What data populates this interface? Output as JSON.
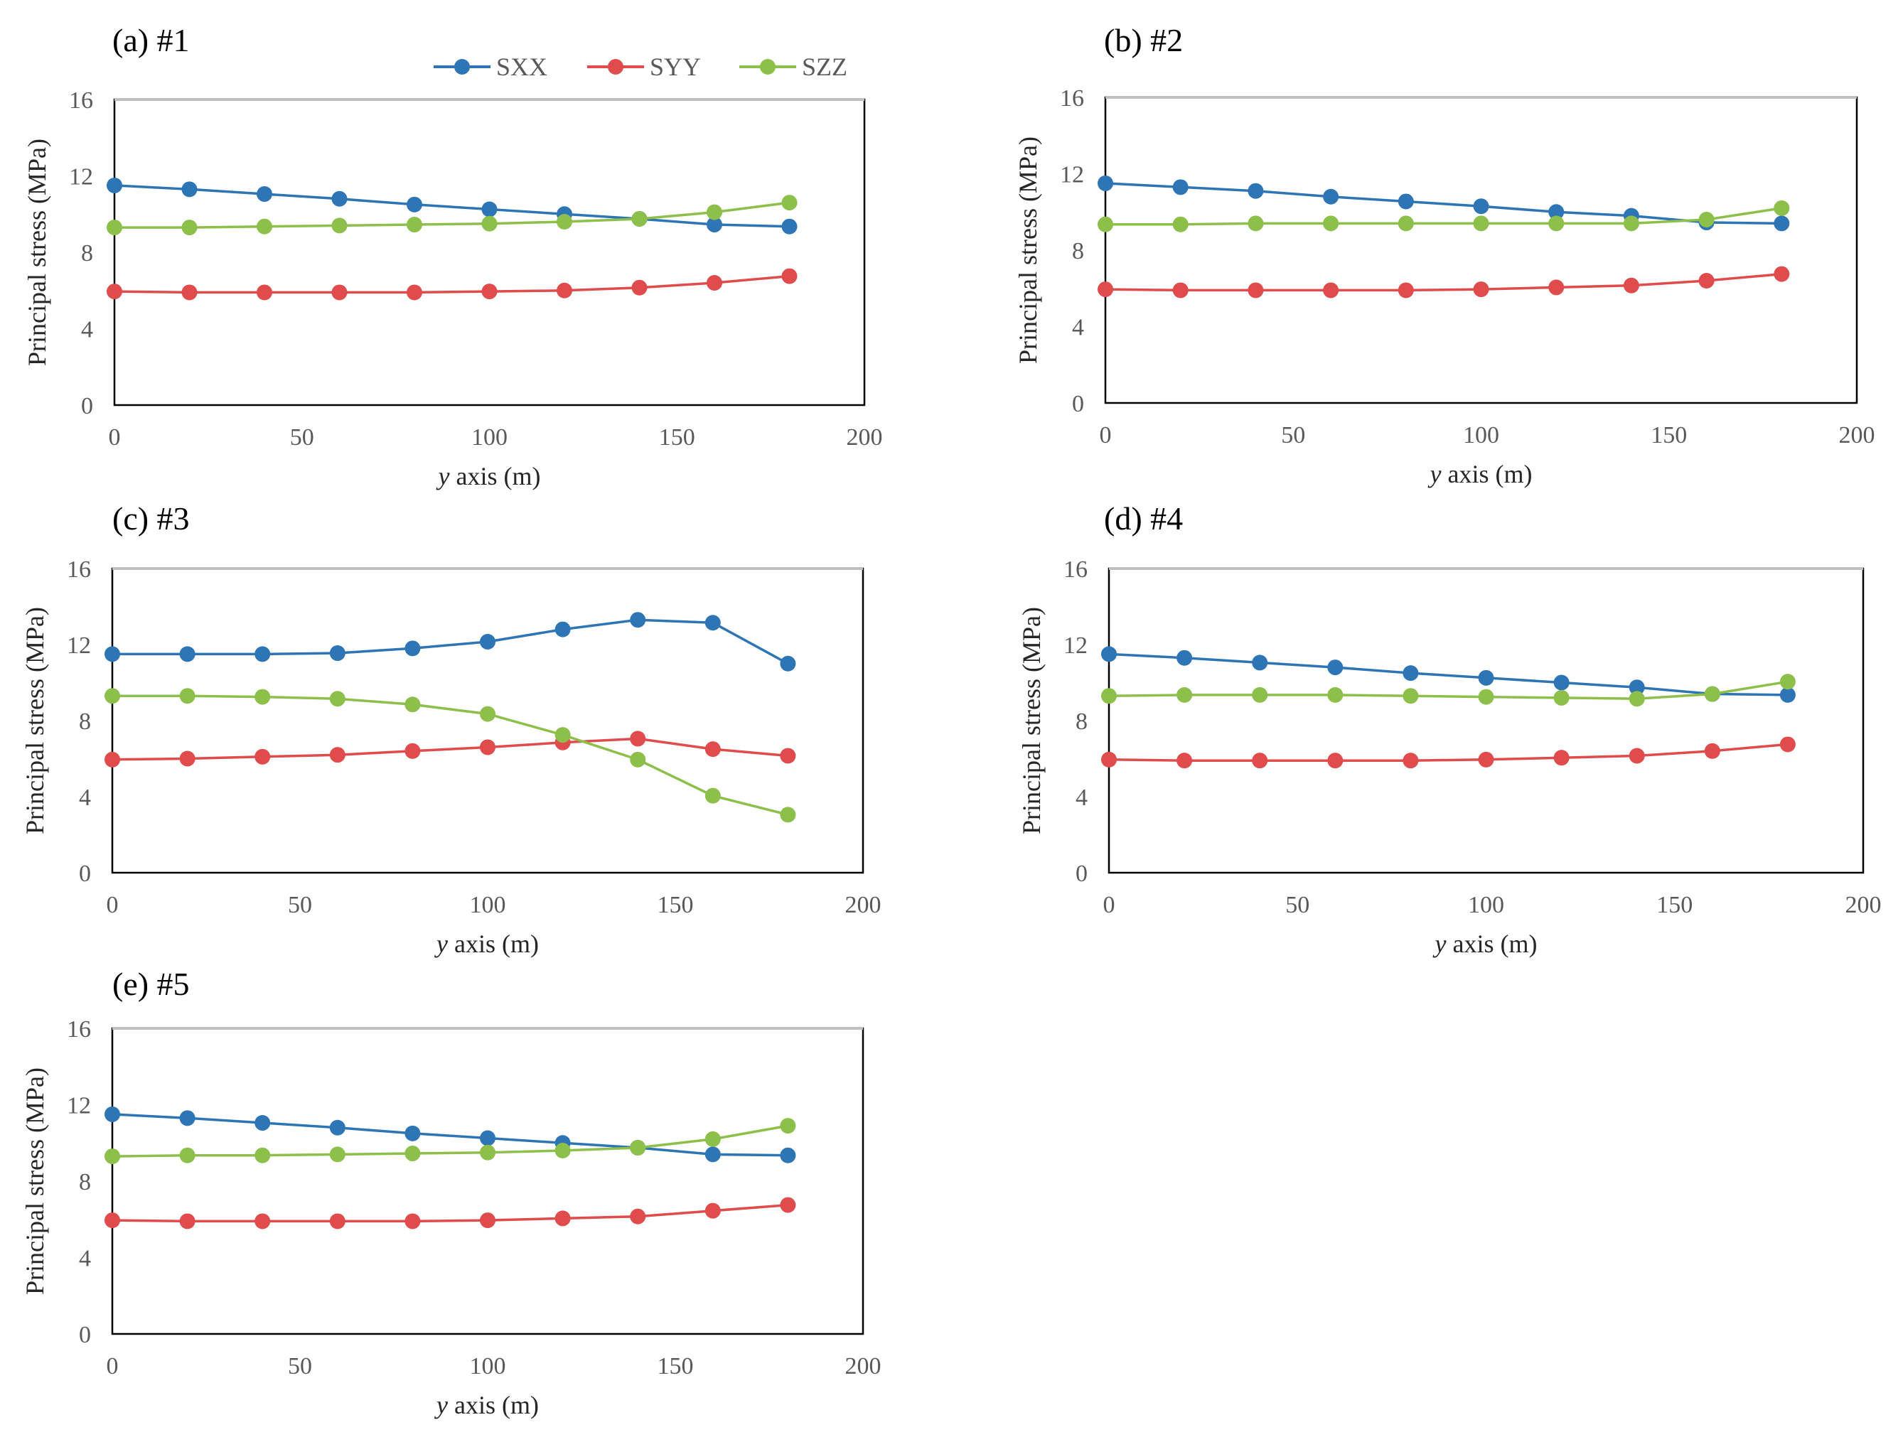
{
  "legend": [
    {
      "name": "SXX",
      "color": "#2e75b6"
    },
    {
      "name": "SYY",
      "color": "#e04b4b"
    },
    {
      "name": "SZZ",
      "color": "#8dbf4b"
    }
  ],
  "chart_data": [
    {
      "type": "line",
      "title": "(a) #1",
      "xlabel_italic": "y",
      "xlabel": " axis (m)",
      "ylabel": "Principal stress (MPa)",
      "xlim": [
        0,
        200
      ],
      "ylim": [
        0,
        16
      ],
      "xticks": [
        0,
        50,
        100,
        150,
        200
      ],
      "yticks": [
        0,
        4,
        8,
        12,
        16
      ],
      "x": [
        0,
        20,
        40,
        60,
        80,
        100,
        120,
        140,
        160,
        180
      ],
      "series": [
        {
          "name": "SXX",
          "values": [
            11.5,
            11.3,
            11.05,
            10.8,
            10.5,
            10.25,
            10.0,
            9.75,
            9.45,
            9.35
          ]
        },
        {
          "name": "SYY",
          "values": [
            5.95,
            5.9,
            5.9,
            5.9,
            5.9,
            5.95,
            6.0,
            6.15,
            6.4,
            6.75
          ]
        },
        {
          "name": "SZZ",
          "values": [
            9.3,
            9.3,
            9.35,
            9.4,
            9.45,
            9.5,
            9.6,
            9.75,
            10.1,
            10.6
          ]
        }
      ]
    },
    {
      "type": "line",
      "title": "(b) #2",
      "xlabel_italic": "y",
      "xlabel": " axis (m)",
      "ylabel": "Principal stress (MPa)",
      "xlim": [
        0,
        200
      ],
      "ylim": [
        0,
        16
      ],
      "xticks": [
        0,
        50,
        100,
        150,
        200
      ],
      "yticks": [
        0,
        4,
        8,
        12,
        16
      ],
      "x": [
        0,
        20,
        40,
        60,
        80,
        100,
        120,
        140,
        160,
        180
      ],
      "series": [
        {
          "name": "SXX",
          "values": [
            11.5,
            11.3,
            11.1,
            10.8,
            10.55,
            10.3,
            10.0,
            9.8,
            9.45,
            9.4
          ]
        },
        {
          "name": "SYY",
          "values": [
            5.95,
            5.9,
            5.9,
            5.9,
            5.9,
            5.95,
            6.05,
            6.15,
            6.4,
            6.75
          ]
        },
        {
          "name": "SZZ",
          "values": [
            9.35,
            9.35,
            9.4,
            9.4,
            9.4,
            9.4,
            9.4,
            9.4,
            9.6,
            10.2
          ]
        }
      ]
    },
    {
      "type": "line",
      "title": "(c) #3",
      "xlabel_italic": "y",
      "xlabel": " axis (m)",
      "ylabel": "Principal stress (MPa)",
      "xlim": [
        0,
        200
      ],
      "ylim": [
        0,
        16
      ],
      "xticks": [
        0,
        50,
        100,
        150,
        200
      ],
      "yticks": [
        0,
        4,
        8,
        12,
        16
      ],
      "x": [
        0,
        20,
        40,
        60,
        80,
        100,
        120,
        140,
        160,
        180
      ],
      "series": [
        {
          "name": "SXX",
          "values": [
            11.5,
            11.5,
            11.5,
            11.55,
            11.8,
            12.15,
            12.8,
            13.3,
            13.15,
            11.0
          ]
        },
        {
          "name": "SYY",
          "values": [
            5.95,
            6.0,
            6.1,
            6.2,
            6.4,
            6.6,
            6.85,
            7.05,
            6.5,
            6.15
          ]
        },
        {
          "name": "SZZ",
          "values": [
            9.3,
            9.3,
            9.25,
            9.15,
            8.85,
            8.35,
            7.25,
            5.95,
            4.05,
            3.05
          ]
        }
      ]
    },
    {
      "type": "line",
      "title": "(d) #4",
      "xlabel_italic": "y",
      "xlabel": " axis (m)",
      "ylabel": "Principal stress (MPa)",
      "xlim": [
        0,
        200
      ],
      "ylim": [
        0,
        16
      ],
      "xticks": [
        0,
        50,
        100,
        150,
        200
      ],
      "yticks": [
        0,
        4,
        8,
        12,
        16
      ],
      "x": [
        0,
        20,
        40,
        60,
        80,
        100,
        120,
        140,
        160,
        180
      ],
      "series": [
        {
          "name": "SXX",
          "values": [
            11.5,
            11.3,
            11.05,
            10.8,
            10.5,
            10.25,
            10.0,
            9.75,
            9.4,
            9.35
          ]
        },
        {
          "name": "SYY",
          "values": [
            5.95,
            5.9,
            5.9,
            5.9,
            5.9,
            5.95,
            6.05,
            6.15,
            6.4,
            6.75
          ]
        },
        {
          "name": "SZZ",
          "values": [
            9.3,
            9.35,
            9.35,
            9.35,
            9.3,
            9.25,
            9.2,
            9.15,
            9.4,
            10.05
          ]
        }
      ]
    },
    {
      "type": "line",
      "title": "(e) #5",
      "xlabel_italic": "y",
      "xlabel": " axis (m)",
      "ylabel": "Principal stress (MPa)",
      "xlim": [
        0,
        200
      ],
      "ylim": [
        0,
        16
      ],
      "xticks": [
        0,
        50,
        100,
        150,
        200
      ],
      "yticks": [
        0,
        4,
        8,
        12,
        16
      ],
      "x": [
        0,
        20,
        40,
        60,
        80,
        100,
        120,
        140,
        160,
        180
      ],
      "series": [
        {
          "name": "SXX",
          "values": [
            11.5,
            11.3,
            11.05,
            10.8,
            10.5,
            10.25,
            10.0,
            9.75,
            9.4,
            9.35
          ]
        },
        {
          "name": "SYY",
          "values": [
            5.95,
            5.9,
            5.9,
            5.9,
            5.9,
            5.95,
            6.05,
            6.15,
            6.45,
            6.75
          ]
        },
        {
          "name": "SZZ",
          "values": [
            9.3,
            9.35,
            9.35,
            9.4,
            9.45,
            9.5,
            9.6,
            9.75,
            10.2,
            10.9
          ]
        }
      ]
    }
  ]
}
